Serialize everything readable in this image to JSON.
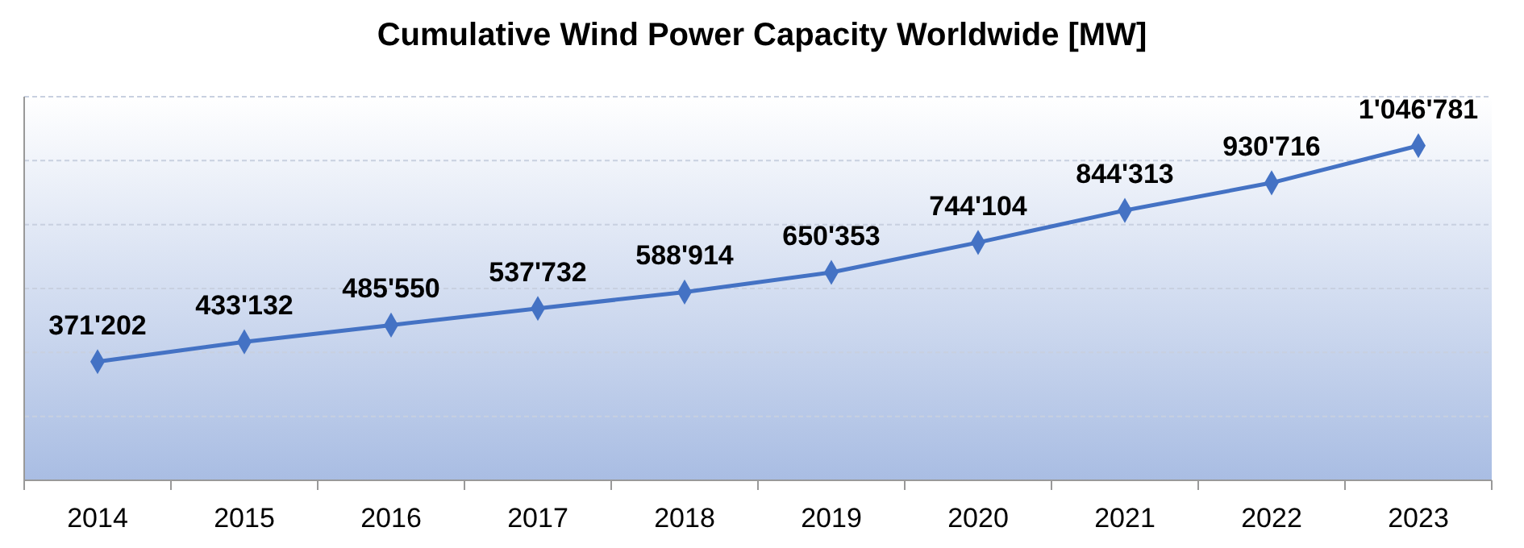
{
  "chart_data": {
    "type": "line",
    "title": "Cumulative Wind Power Capacity Worldwide [MW]",
    "categories": [
      "2014",
      "2015",
      "2016",
      "2017",
      "2018",
      "2019",
      "2020",
      "2021",
      "2022",
      "2023"
    ],
    "series": [
      {
        "color": "#4472c4",
        "values": [
          371202,
          433132,
          485550,
          537732,
          588914,
          650353,
          744104,
          844313,
          930716,
          1046781
        ],
        "value_labels": [
          "371'202",
          "433'132",
          "485'550",
          "537'732",
          "588'914",
          "650'353",
          "744'104",
          "844'313",
          "930'716",
          "1'046'781"
        ]
      }
    ],
    "ylim": [
      0,
      1200000
    ],
    "yticks": [
      {
        "value": 0,
        "label": null
      },
      {
        "value": 200000,
        "label": null
      },
      {
        "value": 400000,
        "label": null
      },
      {
        "value": 600000,
        "label": null
      },
      {
        "value": 800000,
        "label": null
      },
      {
        "value": 1000000,
        "label": null
      },
      {
        "value": 1200000,
        "label": null
      }
    ],
    "tick_labels": "x",
    "grid": "y",
    "marker": "diamond",
    "line_style": "solid"
  }
}
